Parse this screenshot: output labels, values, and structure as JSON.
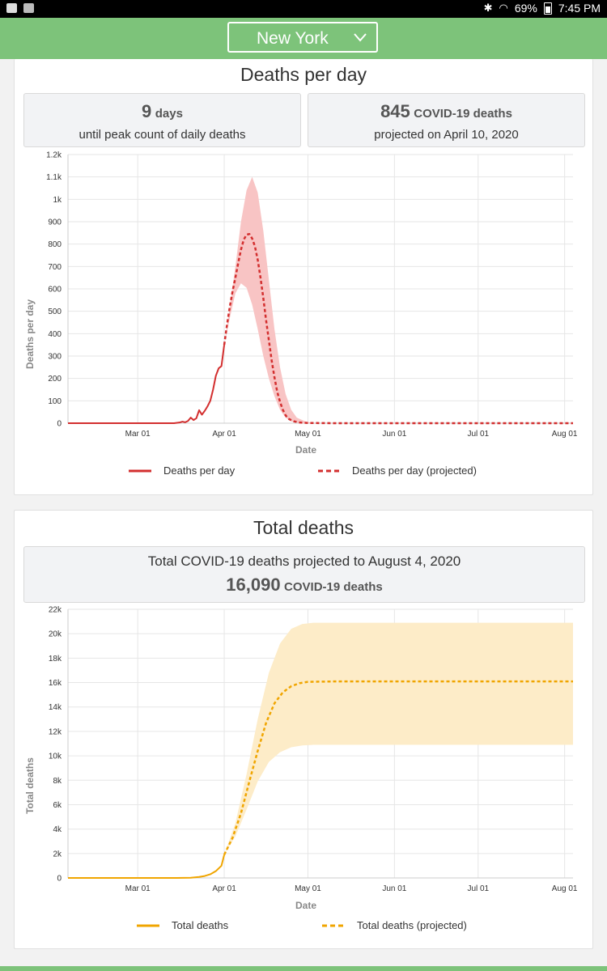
{
  "status_bar": {
    "battery": "69%",
    "time": "7:45 PM"
  },
  "header": {
    "selected_state": "New York"
  },
  "deaths_per_day": {
    "title": "Deaths per day",
    "peak_days_value": "9",
    "peak_days_unit": "days",
    "peak_days_caption": "until peak count of daily deaths",
    "peak_value": "845",
    "peak_unit": "COVID-19 deaths",
    "peak_caption": "projected on April 10, 2020",
    "legend_actual": "Deaths per day",
    "legend_projected": "Deaths per day (projected)"
  },
  "total_deaths": {
    "title": "Total deaths",
    "headline": "Total COVID-19 deaths projected to August 4, 2020",
    "total_value": "16,090",
    "total_unit": "COVID-19 deaths",
    "legend_actual": "Total deaths",
    "legend_projected": "Total deaths (projected)"
  },
  "chart_data": [
    {
      "type": "line",
      "xlabel": "Date",
      "ylabel": "Deaths per day",
      "x_ticks": [
        "Mar 01",
        "Apr 01",
        "May 01",
        "Jun 01",
        "Jul 01",
        "Aug 01"
      ],
      "y_ticks": [
        "0",
        "100",
        "200",
        "300",
        "400",
        "500",
        "600",
        "700",
        "800",
        "900",
        "1k",
        "1.1k",
        "1.2k"
      ],
      "xlim": [
        "2020-02-05",
        "2020-08-04"
      ],
      "ylim": [
        0,
        1200
      ],
      "grid": true,
      "legend": "bottom",
      "color": "#d32f2f",
      "band_color": "#f8c4c4",
      "series": [
        {
          "name": "Deaths per day",
          "style": "solid",
          "points": [
            [
              "2020-02-05",
              0
            ],
            [
              "2020-03-14",
              0
            ],
            [
              "2020-03-16",
              3
            ],
            [
              "2020-03-17",
              7
            ],
            [
              "2020-03-18",
              4
            ],
            [
              "2020-03-19",
              10
            ],
            [
              "2020-03-20",
              25
            ],
            [
              "2020-03-21",
              14
            ],
            [
              "2020-03-22",
              22
            ],
            [
              "2020-03-23",
              58
            ],
            [
              "2020-03-24",
              38
            ],
            [
              "2020-03-25",
              55
            ],
            [
              "2020-03-26",
              75
            ],
            [
              "2020-03-27",
              100
            ],
            [
              "2020-03-28",
              150
            ],
            [
              "2020-03-29",
              212
            ],
            [
              "2020-03-30",
              245
            ],
            [
              "2020-03-31",
              255
            ],
            [
              "2020-04-01",
              350
            ]
          ]
        },
        {
          "name": "Deaths per day (projected)",
          "style": "dashed",
          "points": [
            [
              "2020-04-01",
              350
            ],
            [
              "2020-04-02",
              440
            ],
            [
              "2020-04-03",
              520
            ],
            [
              "2020-04-04",
              590
            ],
            [
              "2020-04-05",
              650
            ],
            [
              "2020-04-06",
              715
            ],
            [
              "2020-04-07",
              775
            ],
            [
              "2020-04-08",
              820
            ],
            [
              "2020-04-09",
              842
            ],
            [
              "2020-04-10",
              845
            ],
            [
              "2020-04-11",
              825
            ],
            [
              "2020-04-12",
              790
            ],
            [
              "2020-04-13",
              730
            ],
            [
              "2020-04-14",
              650
            ],
            [
              "2020-04-15",
              560
            ],
            [
              "2020-04-16",
              460
            ],
            [
              "2020-04-17",
              370
            ],
            [
              "2020-04-18",
              280
            ],
            [
              "2020-04-19",
              205
            ],
            [
              "2020-04-20",
              140
            ],
            [
              "2020-04-21",
              95
            ],
            [
              "2020-04-22",
              60
            ],
            [
              "2020-04-23",
              35
            ],
            [
              "2020-04-24",
              20
            ],
            [
              "2020-04-26",
              8
            ],
            [
              "2020-04-28",
              3
            ],
            [
              "2020-05-01",
              1
            ],
            [
              "2020-05-10",
              0
            ],
            [
              "2020-08-04",
              0
            ]
          ]
        }
      ],
      "band": {
        "upper": [
          [
            "2020-04-01",
            350
          ],
          [
            "2020-04-03",
            520
          ],
          [
            "2020-04-05",
            700
          ],
          [
            "2020-04-07",
            900
          ],
          [
            "2020-04-09",
            1040
          ],
          [
            "2020-04-11",
            1100
          ],
          [
            "2020-04-13",
            1030
          ],
          [
            "2020-04-15",
            860
          ],
          [
            "2020-04-17",
            640
          ],
          [
            "2020-04-19",
            420
          ],
          [
            "2020-04-21",
            250
          ],
          [
            "2020-04-23",
            130
          ],
          [
            "2020-04-25",
            60
          ],
          [
            "2020-04-27",
            25
          ],
          [
            "2020-04-30",
            8
          ],
          [
            "2020-05-03",
            0
          ]
        ],
        "lower": [
          [
            "2020-04-01",
            350
          ],
          [
            "2020-04-03",
            470
          ],
          [
            "2020-04-05",
            580
          ],
          [
            "2020-04-07",
            625
          ],
          [
            "2020-04-09",
            605
          ],
          [
            "2020-04-11",
            530
          ],
          [
            "2020-04-13",
            420
          ],
          [
            "2020-04-15",
            300
          ],
          [
            "2020-04-17",
            200
          ],
          [
            "2020-04-19",
            120
          ],
          [
            "2020-04-21",
            60
          ],
          [
            "2020-04-23",
            25
          ],
          [
            "2020-04-25",
            8
          ],
          [
            "2020-04-28",
            0
          ],
          [
            "2020-05-03",
            0
          ]
        ]
      }
    },
    {
      "type": "line",
      "xlabel": "Date",
      "ylabel": "Total deaths",
      "x_ticks": [
        "Mar 01",
        "Apr 01",
        "May 01",
        "Jun 01",
        "Jul 01",
        "Aug 01"
      ],
      "y_ticks": [
        "0",
        "2k",
        "4k",
        "6k",
        "8k",
        "10k",
        "12k",
        "14k",
        "16k",
        "18k",
        "20k",
        "22k"
      ],
      "xlim": [
        "2020-02-05",
        "2020-08-04"
      ],
      "ylim": [
        0,
        22000
      ],
      "grid": true,
      "legend": "bottom",
      "color": "#f0a500",
      "band_color": "#fdecc8",
      "series": [
        {
          "name": "Total deaths",
          "style": "solid",
          "points": [
            [
              "2020-02-05",
              0
            ],
            [
              "2020-03-15",
              0
            ],
            [
              "2020-03-20",
              20
            ],
            [
              "2020-03-23",
              80
            ],
            [
              "2020-03-25",
              160
            ],
            [
              "2020-03-27",
              300
            ],
            [
              "2020-03-29",
              560
            ],
            [
              "2020-03-31",
              1000
            ],
            [
              "2020-04-01",
              1900
            ]
          ]
        },
        {
          "name": "Total deaths (projected)",
          "style": "dashed",
          "points": [
            [
              "2020-04-01",
              1900
            ],
            [
              "2020-04-04",
              3300
            ],
            [
              "2020-04-07",
              5300
            ],
            [
              "2020-04-10",
              7900
            ],
            [
              "2020-04-13",
              10400
            ],
            [
              "2020-04-16",
              12700
            ],
            [
              "2020-04-19",
              14300
            ],
            [
              "2020-04-22",
              15200
            ],
            [
              "2020-04-25",
              15700
            ],
            [
              "2020-04-28",
              15950
            ],
            [
              "2020-05-01",
              16060
            ],
            [
              "2020-05-10",
              16090
            ],
            [
              "2020-08-04",
              16090
            ]
          ]
        }
      ],
      "band": {
        "upper": [
          [
            "2020-04-01",
            1900
          ],
          [
            "2020-04-05",
            4500
          ],
          [
            "2020-04-09",
            8500
          ],
          [
            "2020-04-13",
            13000
          ],
          [
            "2020-04-17",
            16800
          ],
          [
            "2020-04-21",
            19200
          ],
          [
            "2020-04-25",
            20400
          ],
          [
            "2020-04-29",
            20800
          ],
          [
            "2020-05-03",
            20900
          ],
          [
            "2020-08-04",
            20900
          ]
        ],
        "lower": [
          [
            "2020-04-01",
            1900
          ],
          [
            "2020-04-05",
            3400
          ],
          [
            "2020-04-09",
            5600
          ],
          [
            "2020-04-13",
            7900
          ],
          [
            "2020-04-17",
            9500
          ],
          [
            "2020-04-21",
            10300
          ],
          [
            "2020-04-25",
            10700
          ],
          [
            "2020-04-29",
            10850
          ],
          [
            "2020-05-03",
            10900
          ],
          [
            "2020-08-04",
            10900
          ]
        ]
      }
    }
  ]
}
